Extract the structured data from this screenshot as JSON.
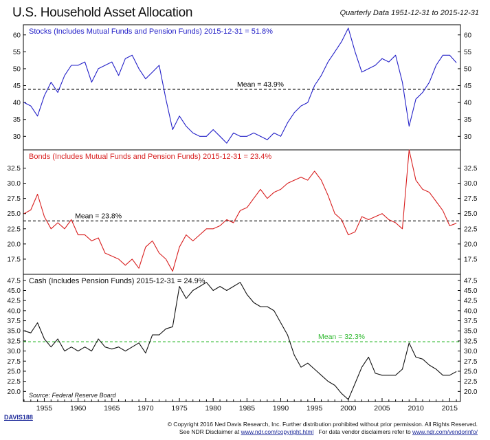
{
  "header": {
    "title": "U.S. Household Asset Allocation",
    "subtitle": "Quarterly Data 1951-12-31 to 2015-12-31"
  },
  "footer": {
    "code": "DAVIS188",
    "copyright": "© Copyright 2016 Ned Davis Research, Inc. Further distribution prohibited without prior permission. All Rights Reserved.",
    "disclaimer_prefix": "See NDR Disclaimer at ",
    "disclaimer_link": "www.ndr.com/copyright.html",
    "vendor_prefix": "For data vendor disclaimers refer to ",
    "vendor_link": "www.ndr.com/vendorinfo/"
  },
  "chart_data": [
    {
      "type": "line",
      "panel": "stocks",
      "title": "Stocks (Includes Mutual Funds and Pension Funds) 2015-12-31 = 51.8%",
      "color": "#2320c8",
      "mean": 43.9,
      "mean_label": "Mean = 43.9%",
      "mean_color": "#000000",
      "ylim": [
        26,
        63
      ],
      "yticks": [
        30,
        35,
        40,
        45,
        50,
        55,
        60
      ],
      "ytick_labels": [
        "30",
        "35",
        "40",
        "45",
        "50",
        "55",
        "60"
      ],
      "x": [
        1952,
        1953,
        1954,
        1955,
        1956,
        1957,
        1958,
        1959,
        1960,
        1961,
        1962,
        1963,
        1964,
        1965,
        1966,
        1967,
        1968,
        1969,
        1970,
        1971,
        1972,
        1973,
        1974,
        1975,
        1976,
        1977,
        1978,
        1979,
        1980,
        1981,
        1982,
        1983,
        1984,
        1985,
        1986,
        1987,
        1988,
        1989,
        1990,
        1991,
        1992,
        1993,
        1994,
        1995,
        1996,
        1997,
        1998,
        1999,
        2000,
        2001,
        2002,
        2003,
        2004,
        2005,
        2006,
        2007,
        2008,
        2009,
        2010,
        2011,
        2012,
        2013,
        2014,
        2015,
        2015.99
      ],
      "values": [
        40,
        39,
        36,
        42,
        46,
        43,
        48,
        51,
        51,
        52,
        46,
        50,
        51,
        52,
        48,
        53,
        54,
        50,
        47,
        49,
        51,
        41,
        32,
        36,
        33,
        31,
        30,
        30,
        32,
        30,
        28,
        31,
        30,
        30,
        31,
        30,
        29,
        31,
        30,
        34,
        37,
        39,
        40,
        45,
        48,
        52,
        55,
        58,
        62,
        55,
        49,
        50,
        51,
        53,
        52,
        54,
        46,
        33,
        41,
        43,
        46,
        51,
        54,
        54,
        51.8
      ]
    },
    {
      "type": "line",
      "panel": "bonds",
      "title": "Bonds (Includes Mutual Funds and Pension Funds) 2015-12-31 = 23.4%",
      "color": "#d81e1e",
      "mean": 23.8,
      "mean_label": "Mean = 23.8%",
      "mean_color": "#000000",
      "ylim": [
        15,
        35.5
      ],
      "yticks": [
        17.5,
        20,
        22.5,
        25,
        27.5,
        30,
        32.5
      ],
      "ytick_labels": [
        "17.5",
        "20.0",
        "22.5",
        "25.0",
        "27.5",
        "30.0",
        "32.5"
      ],
      "x": [
        1952,
        1953,
        1954,
        1955,
        1956,
        1957,
        1958,
        1959,
        1960,
        1961,
        1962,
        1963,
        1964,
        1965,
        1966,
        1967,
        1968,
        1969,
        1970,
        1971,
        1972,
        1973,
        1974,
        1975,
        1976,
        1977,
        1978,
        1979,
        1980,
        1981,
        1982,
        1983,
        1984,
        1985,
        1986,
        1987,
        1988,
        1989,
        1990,
        1991,
        1992,
        1993,
        1994,
        1995,
        1996,
        1997,
        1998,
        1999,
        2000,
        2001,
        2002,
        2003,
        2004,
        2005,
        2006,
        2007,
        2008,
        2009,
        2010,
        2011,
        2012,
        2013,
        2014,
        2015,
        2015.99
      ],
      "values": [
        25,
        25.6,
        28.2,
        24.5,
        22.5,
        23.5,
        22.5,
        24,
        21.5,
        21.5,
        20.5,
        21,
        18.5,
        18,
        17.5,
        16.5,
        17.5,
        16,
        19.5,
        20.5,
        18.5,
        17.5,
        15.5,
        19.5,
        21.5,
        20.5,
        21.5,
        22.5,
        22.5,
        23,
        24,
        23.5,
        25.5,
        26,
        27.5,
        29,
        27.5,
        28.5,
        29,
        30,
        30.5,
        31,
        30.5,
        32,
        30.5,
        28,
        25,
        24,
        21.5,
        22,
        24.5,
        24,
        24.5,
        25,
        24,
        23.5,
        22.5,
        35.5,
        30.5,
        29,
        28.5,
        27,
        25.5,
        23,
        23.4
      ]
    },
    {
      "type": "line",
      "panel": "cash",
      "title": "Cash (Includes Pension Funds) 2015-12-31 = 24.9%",
      "color": "#111111",
      "mean": 32.3,
      "mean_label": "Mean = 32.3%",
      "mean_color": "#2fb82f",
      "ylim": [
        17.5,
        49
      ],
      "yticks": [
        20,
        22.5,
        25,
        27.5,
        30,
        32.5,
        35,
        37.5,
        40,
        42.5,
        45,
        47.5
      ],
      "ytick_labels": [
        "20.0",
        "22.5",
        "25.0",
        "27.5",
        "30.0",
        "32.5",
        "35.0",
        "37.5",
        "40.0",
        "42.5",
        "45.0",
        "47.5"
      ],
      "source": "Source: Federal Reserve Board",
      "xticks": [
        1955,
        1960,
        1965,
        1970,
        1975,
        1980,
        1985,
        1990,
        1995,
        2000,
        2005,
        2010,
        2015
      ],
      "x": [
        1952,
        1953,
        1954,
        1955,
        1956,
        1957,
        1958,
        1959,
        1960,
        1961,
        1962,
        1963,
        1964,
        1965,
        1966,
        1967,
        1968,
        1969,
        1970,
        1971,
        1972,
        1973,
        1974,
        1975,
        1976,
        1977,
        1978,
        1979,
        1980,
        1981,
        1982,
        1983,
        1984,
        1985,
        1986,
        1987,
        1988,
        1989,
        1990,
        1991,
        1992,
        1993,
        1994,
        1995,
        1996,
        1997,
        1998,
        1999,
        2000,
        2001,
        2002,
        2003,
        2004,
        2005,
        2006,
        2007,
        2008,
        2009,
        2010,
        2011,
        2012,
        2013,
        2014,
        2015,
        2015.99
      ],
      "values": [
        35,
        34.5,
        37,
        33,
        31,
        33,
        30,
        31,
        30,
        31,
        30,
        33,
        31,
        30.5,
        31,
        30,
        31,
        32,
        29.5,
        34,
        34,
        35.5,
        36,
        46,
        43,
        45,
        46,
        47,
        45,
        46,
        45,
        46,
        47,
        44,
        42,
        41,
        41,
        40,
        37,
        34,
        29,
        26,
        27,
        25.5,
        24,
        22.5,
        21.5,
        19.5,
        18,
        22,
        26,
        28.5,
        24.5,
        24,
        24,
        24,
        25.5,
        32,
        28.5,
        28,
        26.5,
        25.5,
        24,
        24,
        24.9
      ]
    }
  ]
}
